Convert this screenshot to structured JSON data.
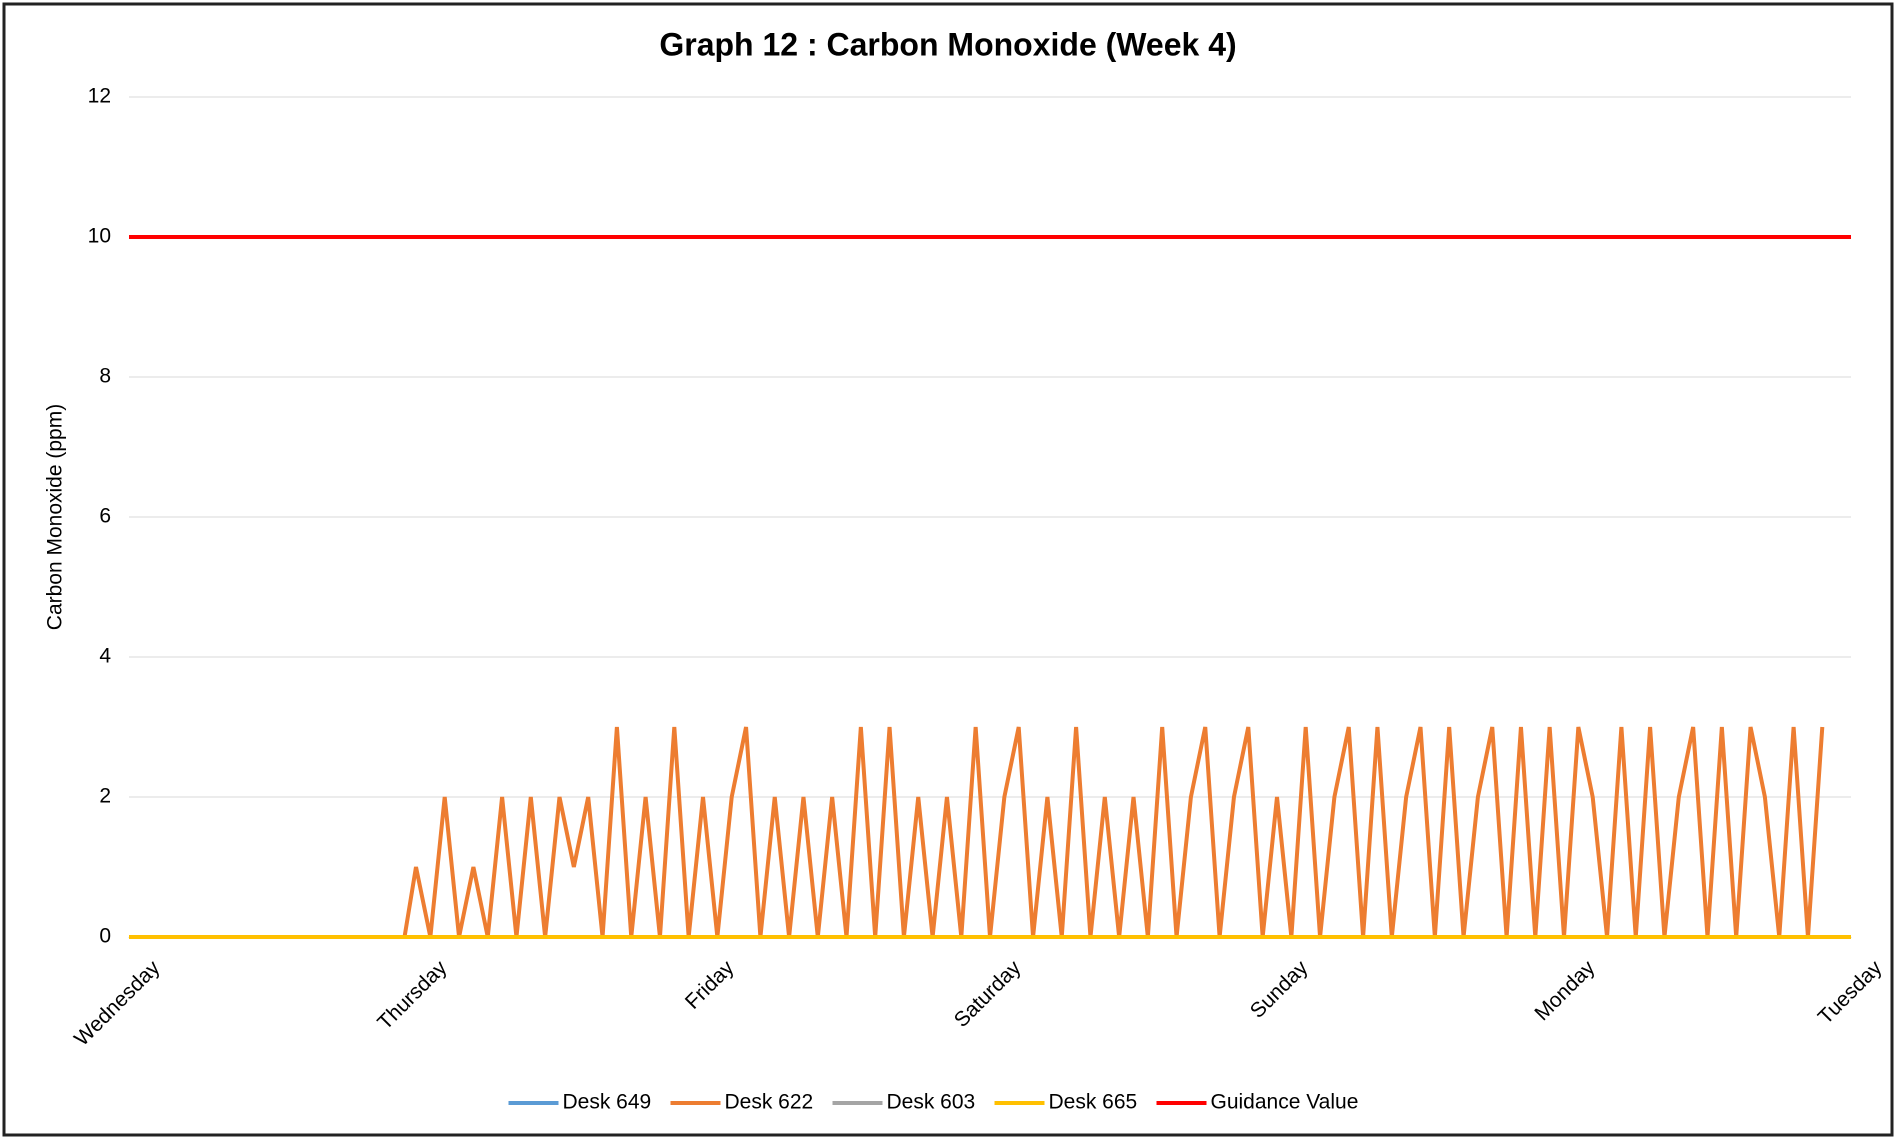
{
  "chart_data": {
    "type": "line",
    "title": "Graph 12 : Carbon Monoxide (Week 4)",
    "ylabel": "Carbon Monoxide (ppm)",
    "xlim": [
      0,
      6
    ],
    "xticks": [
      {
        "value": 0,
        "label": "Wednesday"
      },
      {
        "value": 1,
        "label": "Thursday"
      },
      {
        "value": 2,
        "label": "Friday"
      },
      {
        "value": 3,
        "label": "Saturday"
      },
      {
        "value": 4,
        "label": "Sunday"
      },
      {
        "value": 5,
        "label": "Monday"
      },
      {
        "value": 6,
        "label": "Tuesday"
      }
    ],
    "ylim": [
      0,
      12
    ],
    "yticks": [
      0,
      2,
      4,
      6,
      8,
      10,
      12
    ],
    "grid": true,
    "legend": "bottom",
    "series": [
      {
        "name": "Desk 649",
        "color": "#5b9bd5",
        "x": [
          0,
          6
        ],
        "values": [
          0,
          0
        ]
      },
      {
        "name": "Desk 622",
        "color": "#ed7d31",
        "x": [
          0,
          0.96,
          1.0,
          1.05,
          1.1,
          1.15,
          1.2,
          1.25,
          1.3,
          1.35,
          1.4,
          1.45,
          1.5,
          1.55,
          1.6,
          1.65,
          1.7,
          1.75,
          1.8,
          1.85,
          1.9,
          1.95,
          2.0,
          2.05,
          2.1,
          2.15,
          2.2,
          2.25,
          2.3,
          2.35,
          2.4,
          2.45,
          2.5,
          2.55,
          2.6,
          2.65,
          2.7,
          2.75,
          2.8,
          2.85,
          2.9,
          2.95,
          3.0,
          3.05,
          3.1,
          3.15,
          3.2,
          3.25,
          3.3,
          3.35,
          3.4,
          3.45,
          3.5,
          3.55,
          3.6,
          3.65,
          3.7,
          3.75,
          3.8,
          3.85,
          3.9,
          3.95,
          4.0,
          4.05,
          4.1,
          4.15,
          4.2,
          4.25,
          4.3,
          4.35,
          4.4,
          4.45,
          4.5,
          4.55,
          4.6,
          4.65,
          4.7,
          4.75,
          4.8,
          4.85,
          4.9,
          4.95,
          5.0,
          5.05,
          5.1,
          5.15,
          5.2,
          5.25,
          5.3,
          5.35,
          5.4,
          5.45,
          5.5,
          5.55,
          5.6,
          5.65,
          5.7,
          5.75,
          5.8,
          5.85,
          5.9
        ],
        "values": [
          0,
          0,
          1,
          0,
          2,
          0,
          1,
          0,
          2,
          0,
          2,
          0,
          2,
          1,
          2,
          0,
          3,
          0,
          2,
          0,
          3,
          0,
          2,
          0,
          2,
          3,
          0,
          2,
          0,
          2,
          0,
          2,
          0,
          3,
          0,
          3,
          0,
          2,
          0,
          2,
          0,
          3,
          0,
          2,
          3,
          0,
          2,
          0,
          3,
          0,
          2,
          0,
          2,
          0,
          3,
          0,
          2,
          3,
          0,
          2,
          3,
          0,
          2,
          0,
          3,
          0,
          2,
          3,
          0,
          3,
          0,
          2,
          3,
          0,
          3,
          0,
          2,
          3,
          0,
          3,
          0,
          3,
          0,
          3,
          2,
          0,
          3,
          0,
          3,
          0,
          2,
          3,
          0,
          3,
          0,
          3,
          2,
          0,
          3,
          0,
          3
        ]
      },
      {
        "name": "Desk 603",
        "color": "#a5a5a5",
        "x": [
          0,
          6
        ],
        "values": [
          0,
          0
        ]
      },
      {
        "name": "Desk 665",
        "color": "#ffc000",
        "x": [
          0,
          6
        ],
        "values": [
          0,
          0
        ]
      },
      {
        "name": "Guidance Value",
        "color": "#ff0000",
        "x": [
          0,
          6
        ],
        "values": [
          10,
          10
        ]
      }
    ]
  }
}
